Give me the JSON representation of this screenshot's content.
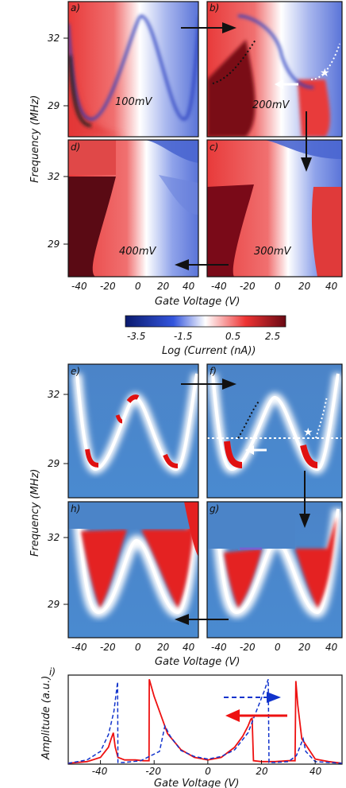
{
  "figure": {
    "panel_labels": [
      "a)",
      "b)",
      "c)",
      "d)",
      "e)",
      "f)",
      "g)",
      "h)",
      "i)"
    ],
    "experiment_panels": [
      {
        "label": "a)",
        "annotation": "100mV"
      },
      {
        "label": "b)",
        "annotation": "200mV"
      },
      {
        "label": "c)",
        "annotation": "300mV"
      },
      {
        "label": "d)",
        "annotation": "400mV"
      }
    ],
    "y_axis_label": "Frequency (MHz)",
    "y_ticks": [
      "32",
      "29"
    ],
    "x_axis_label": "Gate Voltage (V)",
    "x_ticks_top": [
      "-40",
      "-20",
      "0",
      "20",
      "40"
    ],
    "colorbar": {
      "label": "Log (Current (nA))",
      "ticks": [
        "-3.5",
        "-1.5",
        "0.5",
        "2.5"
      ],
      "colormap": [
        "#0a1a6e",
        "#3355dd",
        "#ffffff",
        "#ee3333",
        "#6a0a14"
      ]
    },
    "colors": {
      "blue": "#1133cc",
      "red": "#ee1111",
      "white": "#ffffff"
    }
  },
  "chart_data": {
    "type": "line",
    "label": "i)",
    "xlabel": "Gate Voltage (V)",
    "ylabel": "Amplitude (a.u.)",
    "xlim": [
      -52,
      50
    ],
    "ylim": [
      0,
      1.05
    ],
    "x_ticks": [
      "-40",
      "-20",
      "0",
      "20",
      "40"
    ],
    "series": [
      {
        "style": "solid",
        "color": "#ee1111",
        "x": [
          -52,
          -45,
          -40,
          -37,
          -36,
          -35.2,
          -34.5,
          -33.5,
          -31,
          -27,
          -24,
          -22.5,
          -21.9,
          -21.8,
          -20,
          -15,
          -10,
          -5,
          0,
          5,
          10,
          13,
          15,
          16,
          16.5,
          17,
          20,
          25,
          30,
          32.5,
          32.8,
          33.5,
          35,
          40,
          45,
          50
        ],
        "y": [
          0.01,
          0.03,
          0.08,
          0.2,
          0.3,
          0.37,
          0.2,
          0.08,
          0.05,
          0.05,
          0.04,
          0.04,
          0.04,
          1.0,
          0.8,
          0.36,
          0.17,
          0.08,
          0.05,
          0.08,
          0.2,
          0.33,
          0.45,
          0.53,
          0.54,
          0.04,
          0.03,
          0.03,
          0.04,
          0.04,
          0.98,
          0.7,
          0.3,
          0.06,
          0.03,
          0.01
        ]
      },
      {
        "style": "dashed",
        "color": "#1133cc",
        "x": [
          -52,
          -45,
          -40,
          -37,
          -35,
          -33.6,
          -33.5,
          -31,
          -25,
          -18,
          -16,
          -14,
          -10,
          -5,
          0,
          5,
          10,
          15,
          18,
          21,
          22.5,
          22.8,
          25,
          30,
          33,
          34.5,
          35.5,
          36.5,
          40,
          45,
          50
        ],
        "y": [
          0.01,
          0.05,
          0.15,
          0.35,
          0.62,
          0.97,
          0.02,
          0.02,
          0.04,
          0.15,
          0.45,
          0.33,
          0.16,
          0.09,
          0.06,
          0.09,
          0.17,
          0.37,
          0.62,
          0.86,
          1.0,
          0.02,
          0.02,
          0.03,
          0.1,
          0.22,
          0.3,
          0.15,
          0.03,
          0.02,
          0.01
        ]
      }
    ]
  }
}
